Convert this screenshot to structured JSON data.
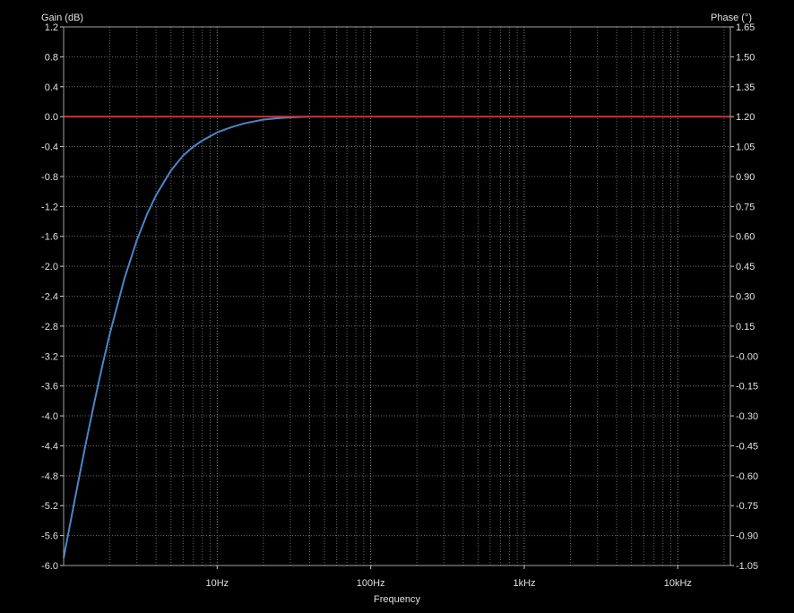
{
  "chart_data": {
    "type": "line",
    "title": "",
    "xlabel": "Frequency",
    "ylabel_left": "Gain (dB)",
    "ylabel_right": "Phase (°)",
    "xscale": "log",
    "xlim": [
      1,
      22000
    ],
    "ylim_left": [
      -6.0,
      1.2
    ],
    "ylim_right": [
      -1.05,
      1.65
    ],
    "grid": true,
    "legend": "none",
    "x_ticks": [
      {
        "value": 10,
        "label": "10Hz"
      },
      {
        "value": 100,
        "label": "100Hz"
      },
      {
        "value": 1000,
        "label": "1kHz"
      },
      {
        "value": 10000,
        "label": "10kHz"
      }
    ],
    "y_ticks_left": [
      "1.2",
      "0.8",
      "0.4",
      "0.0",
      "-0.4",
      "-0.8",
      "-1.2",
      "-1.6",
      "-2.0",
      "-2.4",
      "-2.8",
      "-3.2",
      "-3.6",
      "-4.0",
      "-4.4",
      "-4.8",
      "-5.2",
      "-5.6",
      "-6.0"
    ],
    "y_ticks_right": [
      "1.65",
      "1.50",
      "1.35",
      "1.20",
      "1.05",
      "0.90",
      "0.75",
      "0.60",
      "0.45",
      "0.30",
      "0.15",
      "-0.00",
      "-0.15",
      "-0.30",
      "-0.45",
      "-0.60",
      "-0.75",
      "-0.90",
      "-1.05"
    ],
    "series": [
      {
        "axis": "left",
        "color": "#4a86c8",
        "x": [
          1,
          1.2,
          1.4,
          1.6,
          1.8,
          2,
          2.5,
          3,
          3.5,
          4,
          5,
          6,
          7,
          8,
          10,
          12,
          15,
          20,
          25,
          30,
          40
        ],
        "y": [
          -5.9,
          -5.05,
          -4.35,
          -3.78,
          -3.3,
          -2.9,
          -2.15,
          -1.65,
          -1.3,
          -1.05,
          -0.72,
          -0.52,
          -0.4,
          -0.32,
          -0.21,
          -0.15,
          -0.09,
          -0.04,
          -0.02,
          -0.01,
          0.0
        ]
      },
      {
        "axis": "left",
        "color": "#d03030",
        "x": [
          1,
          22000
        ],
        "y": [
          0.0,
          0.0
        ]
      }
    ]
  }
}
